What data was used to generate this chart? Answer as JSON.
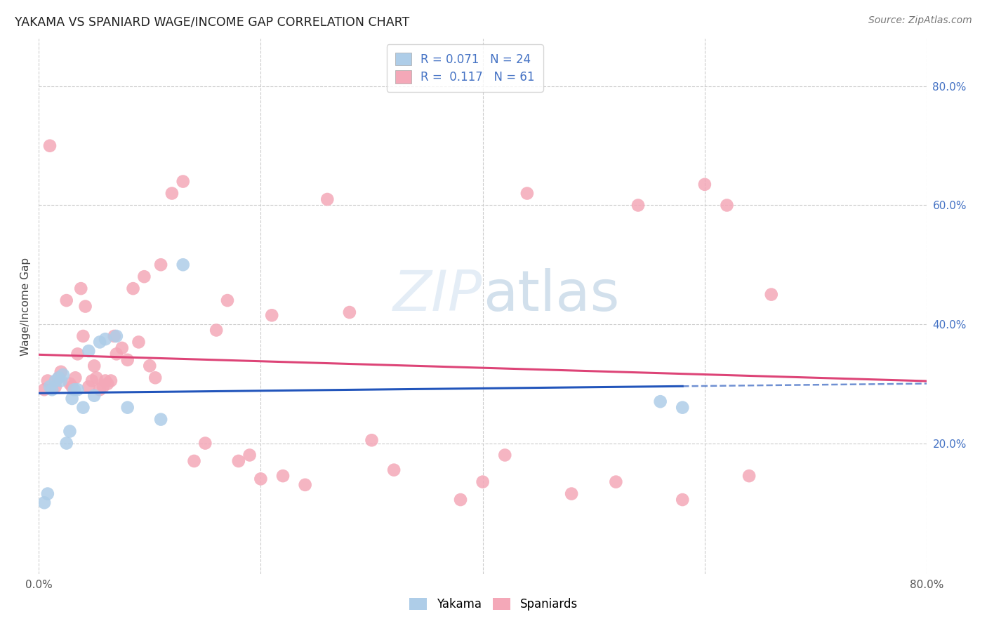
{
  "title": "YAKAMA VS SPANIARD WAGE/INCOME GAP CORRELATION CHART",
  "source": "Source: ZipAtlas.com",
  "ylabel": "Wage/Income Gap",
  "xlim": [
    0.0,
    0.8
  ],
  "ylim": [
    -0.02,
    0.88
  ],
  "ytick_positions_right": [
    0.8,
    0.6,
    0.4,
    0.2
  ],
  "watermark_part1": "ZIP",
  "watermark_part2": "atlas",
  "legend_r_yakama": "0.071",
  "legend_n_yakama": "24",
  "legend_r_spaniards": "0.117",
  "legend_n_spaniards": "61",
  "yakama_color": "#aecde8",
  "spaniards_color": "#f4a8b8",
  "trend_yakama_color": "#2255bb",
  "trend_spaniards_color": "#dd4477",
  "background_color": "#ffffff",
  "grid_color": "#cccccc",
  "yakama_x": [
    0.005,
    0.008,
    0.01,
    0.012,
    0.015,
    0.018,
    0.02,
    0.022,
    0.025,
    0.028,
    0.03,
    0.032,
    0.035,
    0.04,
    0.045,
    0.05,
    0.055,
    0.06,
    0.07,
    0.08,
    0.11,
    0.13,
    0.56,
    0.58
  ],
  "yakama_y": [
    0.1,
    0.115,
    0.295,
    0.29,
    0.305,
    0.31,
    0.305,
    0.315,
    0.2,
    0.22,
    0.275,
    0.29,
    0.29,
    0.26,
    0.355,
    0.28,
    0.37,
    0.375,
    0.38,
    0.26,
    0.24,
    0.5,
    0.27,
    0.26
  ],
  "spaniards_x": [
    0.005,
    0.008,
    0.01,
    0.015,
    0.018,
    0.02,
    0.025,
    0.028,
    0.03,
    0.033,
    0.035,
    0.038,
    0.04,
    0.042,
    0.045,
    0.048,
    0.05,
    0.052,
    0.055,
    0.058,
    0.06,
    0.062,
    0.065,
    0.068,
    0.07,
    0.075,
    0.08,
    0.085,
    0.09,
    0.095,
    0.1,
    0.105,
    0.11,
    0.12,
    0.13,
    0.14,
    0.15,
    0.16,
    0.17,
    0.18,
    0.19,
    0.2,
    0.21,
    0.22,
    0.24,
    0.26,
    0.28,
    0.3,
    0.32,
    0.38,
    0.4,
    0.42,
    0.44,
    0.48,
    0.52,
    0.54,
    0.58,
    0.6,
    0.62,
    0.64,
    0.66
  ],
  "spaniards_y": [
    0.29,
    0.305,
    0.7,
    0.295,
    0.31,
    0.32,
    0.44,
    0.3,
    0.295,
    0.31,
    0.35,
    0.46,
    0.38,
    0.43,
    0.295,
    0.305,
    0.33,
    0.31,
    0.29,
    0.295,
    0.305,
    0.3,
    0.305,
    0.38,
    0.35,
    0.36,
    0.34,
    0.46,
    0.37,
    0.48,
    0.33,
    0.31,
    0.5,
    0.62,
    0.64,
    0.17,
    0.2,
    0.39,
    0.44,
    0.17,
    0.18,
    0.14,
    0.415,
    0.145,
    0.13,
    0.61,
    0.42,
    0.205,
    0.155,
    0.105,
    0.135,
    0.18,
    0.62,
    0.115,
    0.135,
    0.6,
    0.105,
    0.635,
    0.6,
    0.145,
    0.45
  ]
}
